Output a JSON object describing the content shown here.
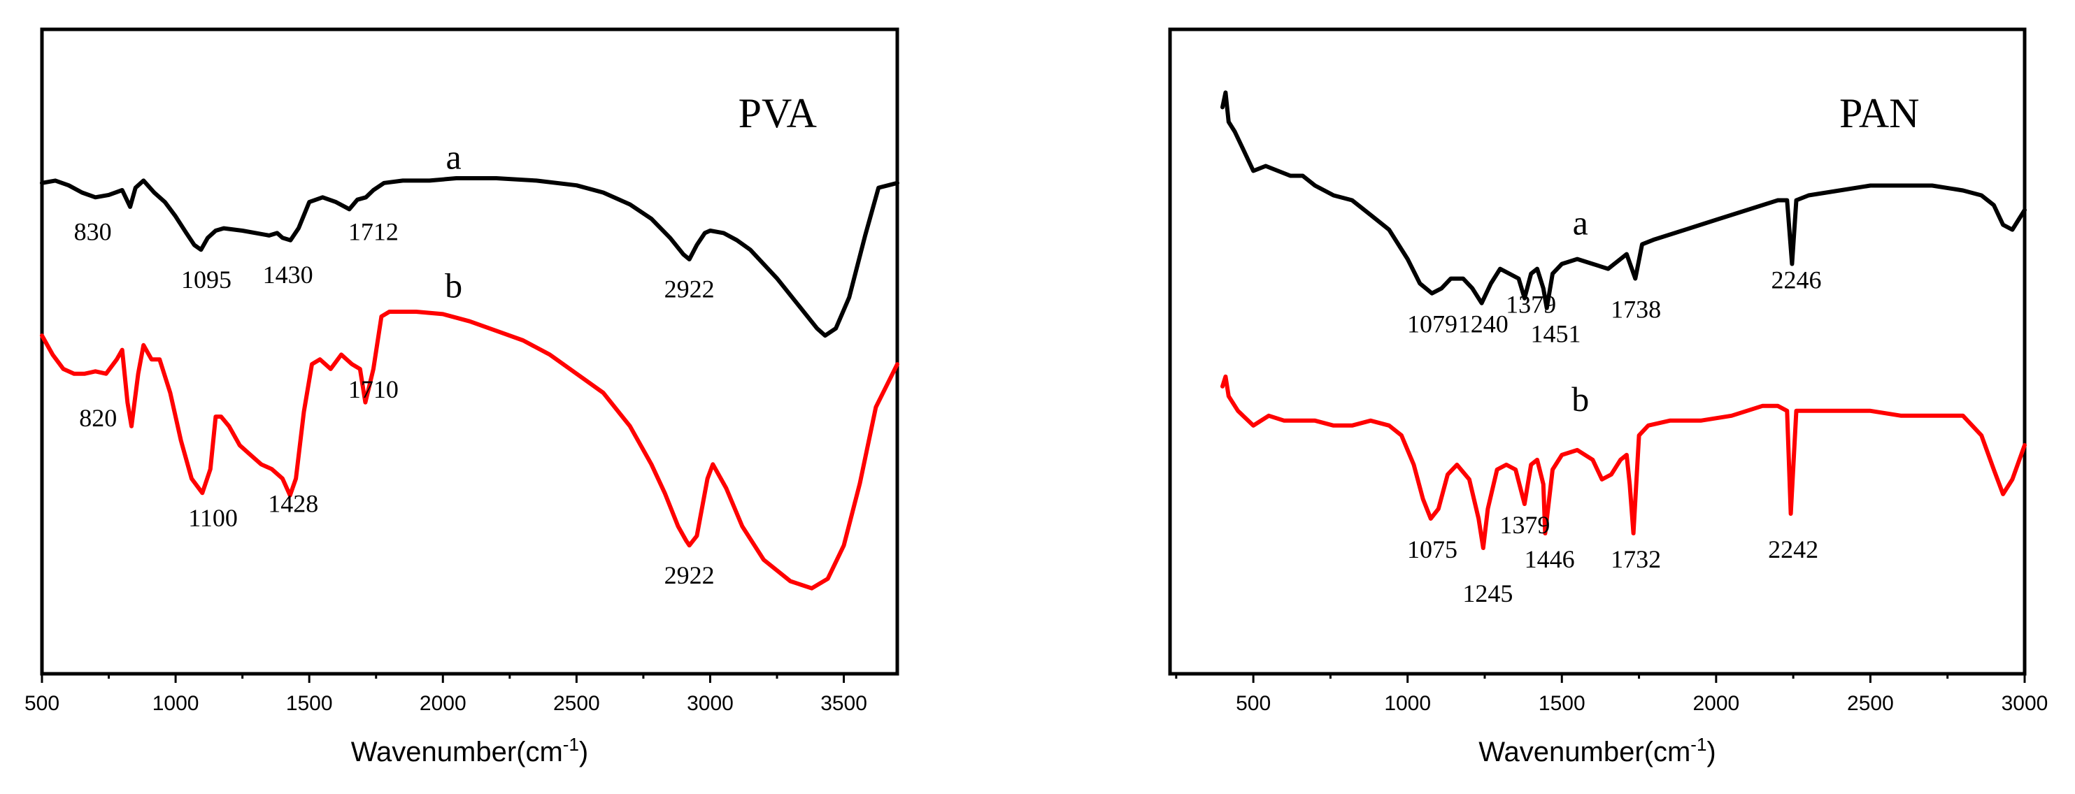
{
  "chart_data": [
    {
      "type": "line",
      "title": "PVA",
      "xlabel": "Wavenumber(cm",
      "xlabel_sup": "-1",
      "xlabel_close": ")",
      "ylabel": "",
      "xlim": [
        500,
        3700
      ],
      "ylim": [
        0,
        100
      ],
      "grid": false,
      "x_ticks": [
        500,
        1000,
        1500,
        2000,
        2500,
        3000,
        3500
      ],
      "x_tick_labels": [
        "500",
        "1000",
        "1500",
        "2000",
        "2500",
        "3000",
        "3500"
      ],
      "series": [
        {
          "name": "a",
          "color": "#000000",
          "x": [
            500,
            550,
            600,
            650,
            700,
            750,
            800,
            830,
            850,
            880,
            920,
            960,
            1000,
            1040,
            1070,
            1095,
            1120,
            1150,
            1180,
            1250,
            1300,
            1350,
            1380,
            1400,
            1430,
            1460,
            1500,
            1550,
            1600,
            1650,
            1680,
            1712,
            1740,
            1780,
            1850,
            1950,
            2050,
            2200,
            2350,
            2500,
            2600,
            2700,
            2780,
            2850,
            2900,
            2922,
            2950,
            2980,
            3000,
            3050,
            3100,
            3150,
            3200,
            3250,
            3300,
            3350,
            3400,
            3430,
            3470,
            3520,
            3580,
            3630,
            3700
          ],
          "y": [
            84,
            84.5,
            83.5,
            82,
            81,
            81.5,
            82.5,
            79,
            83,
            84.5,
            82,
            80,
            77,
            73.5,
            71,
            70,
            72.5,
            74,
            74.5,
            74,
            73.5,
            73,
            73.5,
            72.5,
            72,
            74.5,
            80,
            81,
            80,
            78.5,
            80.5,
            81,
            82.5,
            84,
            84.5,
            84.5,
            85,
            85,
            84.5,
            83.5,
            82,
            79.5,
            76.5,
            72.5,
            69,
            68,
            71,
            73.5,
            74,
            73.5,
            72,
            70,
            67,
            64,
            60.5,
            57,
            53.5,
            52,
            53.5,
            60,
            73,
            83,
            84
          ]
        },
        {
          "name": "b",
          "color": "#ff0000",
          "x": [
            500,
            540,
            580,
            620,
            660,
            700,
            740,
            780,
            800,
            820,
            835,
            860,
            880,
            910,
            940,
            980,
            1020,
            1060,
            1100,
            1130,
            1150,
            1170,
            1200,
            1240,
            1280,
            1320,
            1360,
            1400,
            1428,
            1450,
            1480,
            1510,
            1540,
            1580,
            1620,
            1660,
            1690,
            1710,
            1740,
            1770,
            1800,
            1900,
            2000,
            2100,
            2200,
            2300,
            2400,
            2500,
            2600,
            2700,
            2780,
            2830,
            2880,
            2910,
            2922,
            2950,
            2990,
            3010,
            3060,
            3120,
            3200,
            3300,
            3380,
            3440,
            3500,
            3560,
            3620,
            3700
          ],
          "y": [
            52,
            48,
            45,
            44,
            44,
            44.5,
            44,
            47,
            49,
            38,
            33,
            44,
            50,
            47,
            47,
            40,
            30,
            22,
            19,
            24,
            35,
            35,
            33,
            29,
            27,
            25,
            24,
            22,
            18.5,
            22,
            36,
            46,
            47,
            45,
            48,
            46,
            45,
            38,
            45,
            56,
            57,
            57,
            56.5,
            55,
            53,
            51,
            48,
            44,
            40,
            33,
            25,
            19,
            12,
            9,
            8,
            10,
            22,
            25,
            20,
            12,
            5,
            0.5,
            -1,
            1,
            8,
            21,
            37,
            46
          ]
        }
      ],
      "annotations": [
        {
          "text": "830",
          "x": 690,
          "y": 72
        },
        {
          "text": "1095",
          "x": 1115,
          "y": 62
        },
        {
          "text": "1430",
          "x": 1420,
          "y": 63
        },
        {
          "text": "1712",
          "x": 1740,
          "y": 72
        },
        {
          "text": "2922",
          "x": 2922,
          "y": 60
        },
        {
          "text": "a",
          "x": 2040,
          "y": 87
        },
        {
          "text": "b",
          "x": 2040,
          "y": 60
        },
        {
          "text": "820",
          "x": 710,
          "y": 33
        },
        {
          "text": "1710",
          "x": 1740,
          "y": 39
        },
        {
          "text": "1100",
          "x": 1140,
          "y": 12
        },
        {
          "text": "1428",
          "x": 1440,
          "y": 15
        },
        {
          "text": "2922",
          "x": 2922,
          "y": 0
        }
      ]
    },
    {
      "type": "line",
      "title": "PAN",
      "xlabel": "Wavenumber(cm",
      "xlabel_sup": "-1",
      "xlabel_close": ")",
      "ylabel": "",
      "xlim": [
        230,
        3000
      ],
      "ylim": [
        0,
        100
      ],
      "grid": false,
      "x_ticks": [
        500,
        1000,
        1500,
        2000,
        2500,
        3000
      ],
      "x_tick_labels": [
        "500",
        "1000",
        "1500",
        "2000",
        "2500",
        "3000"
      ],
      "series": [
        {
          "name": "a",
          "color": "#000000",
          "x": [
            400,
            410,
            420,
            440,
            470,
            500,
            540,
            580,
            620,
            660,
            700,
            760,
            820,
            880,
            940,
            1000,
            1040,
            1079,
            1110,
            1140,
            1180,
            1210,
            1240,
            1270,
            1300,
            1330,
            1360,
            1379,
            1400,
            1420,
            1440,
            1451,
            1470,
            1500,
            1550,
            1600,
            1650,
            1690,
            1710,
            1738,
            1760,
            1800,
            1900,
            2000,
            2100,
            2200,
            2230,
            2246,
            2260,
            2300,
            2400,
            2500,
            2600,
            2700,
            2800,
            2860,
            2900,
            2930,
            2960,
            3000
          ],
          "y": [
            92,
            95,
            89,
            87,
            83,
            79,
            80,
            79,
            78,
            78,
            76,
            74,
            73,
            70,
            67,
            61,
            56,
            54,
            55,
            57,
            57,
            55,
            52,
            56,
            59,
            58,
            57,
            53,
            58,
            59,
            55,
            51,
            58,
            60,
            61,
            60,
            59,
            61,
            62,
            57,
            64,
            65,
            67,
            69,
            71,
            73,
            73,
            60,
            73,
            74,
            75,
            76,
            76,
            76,
            75,
            74,
            72,
            68,
            67,
            71
          ]
        },
        {
          "name": "b",
          "color": "#ff0000",
          "x": [
            400,
            410,
            420,
            450,
            500,
            550,
            600,
            650,
            700,
            760,
            820,
            880,
            940,
            980,
            1020,
            1050,
            1075,
            1100,
            1130,
            1160,
            1200,
            1230,
            1245,
            1260,
            1290,
            1320,
            1350,
            1379,
            1400,
            1420,
            1440,
            1446,
            1470,
            1500,
            1550,
            1600,
            1630,
            1660,
            1690,
            1710,
            1720,
            1732,
            1750,
            1780,
            1850,
            1950,
            2050,
            2150,
            2200,
            2230,
            2242,
            2260,
            2300,
            2400,
            2500,
            2600,
            2700,
            2800,
            2860,
            2900,
            2930,
            2960,
            3000
          ],
          "y": [
            35,
            37,
            33,
            30,
            27,
            29,
            28,
            28,
            28,
            27,
            27,
            28,
            27,
            25,
            19,
            12,
            8,
            10,
            17,
            19,
            16,
            8,
            2,
            10,
            18,
            19,
            18,
            11,
            19,
            20,
            15,
            5,
            18,
            21,
            22,
            20,
            16,
            17,
            20,
            21,
            15,
            5,
            25,
            27,
            28,
            28,
            29,
            31,
            31,
            30,
            9,
            30,
            30,
            30,
            30,
            29,
            29,
            29,
            25,
            18,
            13,
            16,
            23
          ]
        }
      ],
      "annotations": [
        {
          "text": "a",
          "x": 1560,
          "y": 66
        },
        {
          "text": "b",
          "x": 1560,
          "y": 30
        },
        {
          "text": "1079",
          "x": 1080,
          "y": 46
        },
        {
          "text": "1240",
          "x": 1245,
          "y": 46
        },
        {
          "text": "1379",
          "x": 1400,
          "y": 50
        },
        {
          "text": "1451",
          "x": 1480,
          "y": 44
        },
        {
          "text": "1738",
          "x": 1740,
          "y": 49
        },
        {
          "text": "2246",
          "x": 2260,
          "y": 55
        },
        {
          "text": "1075",
          "x": 1080,
          "y": 0
        },
        {
          "text": "1245",
          "x": 1260,
          "y": -9
        },
        {
          "text": "1379",
          "x": 1380,
          "y": 5
        },
        {
          "text": "1446",
          "x": 1460,
          "y": -2
        },
        {
          "text": "1732",
          "x": 1740,
          "y": -2
        },
        {
          "text": "2242",
          "x": 2250,
          "y": 0
        }
      ]
    }
  ]
}
